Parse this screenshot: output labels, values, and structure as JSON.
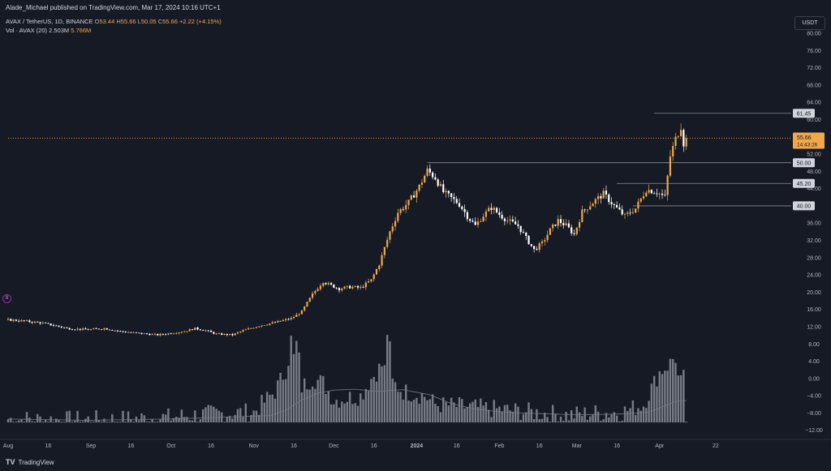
{
  "header": {
    "publisher": "Alade_Michael published on TradingView.com, Mar 17, 2024 10:16 UTC+1"
  },
  "symbol_line": {
    "symbol": "AVAX / TetherUS, 1D, BINANCE",
    "o_label": "O",
    "o_value": "53.44",
    "h_label": "H",
    "h_value": "55.66",
    "l_label": "L",
    "l_value": "50.05",
    "c_label": "C",
    "c_value": "55.66",
    "change": "+2.22 (+4.15%)"
  },
  "volume_line": {
    "label": "Vol · AVAX (20)",
    "value1": "2.503M",
    "value2": "5.766M"
  },
  "currency_button": "USDT",
  "footer": {
    "logo": "TV",
    "brand": "TradingView"
  },
  "alert_badge": "8",
  "colors": {
    "background": "#161a25",
    "up_candle": "#f0a84b",
    "down_candle": "#ffffff",
    "volume_bar": "#9598a1",
    "ma_line": "#787b86",
    "price_line": "#f0a84b",
    "level_line": "#8a8d96",
    "axis_text": "#b2b5be"
  },
  "chart_data": {
    "type": "candlestick",
    "y_axis_ticks": [
      "80.00",
      "76.00",
      "72.00",
      "68.00",
      "64.00",
      "60.00",
      "52.00",
      "48.00",
      "44.00",
      "36.00",
      "32.00",
      "28.00",
      "24.00",
      "20.00",
      "16.00",
      "12.00",
      "8.00",
      "4.00",
      "0.00",
      "−4.00",
      "−8.00",
      "−12.00"
    ],
    "y_axis_tick_values": [
      80,
      76,
      72,
      68,
      64,
      60,
      52,
      48,
      44,
      36,
      32,
      28,
      24,
      20,
      16,
      12,
      8,
      4,
      0,
      -4,
      -8,
      -12
    ],
    "x_axis_labels": [
      "Aug",
      "16",
      "Sep",
      "16",
      "Oct",
      "16",
      "Nov",
      "16",
      "Dec",
      "16",
      "2024",
      "16",
      "Feb",
      "16",
      "Mar",
      "16",
      "Apr",
      "22"
    ],
    "x_axis_label_days": [
      0,
      15,
      31,
      46,
      61,
      76,
      92,
      107,
      122,
      137,
      153,
      168,
      184,
      199,
      213,
      228,
      244,
      265
    ],
    "ylim": [
      -12,
      82
    ],
    "horizontal_levels": [
      {
        "value": 61.45,
        "label": "61.45",
        "start_day": 242
      },
      {
        "value": 50.0,
        "label": "50.00",
        "start_day": 157
      },
      {
        "value": 45.2,
        "label": "45.20",
        "start_day": 228
      },
      {
        "value": 40.0,
        "label": "40.00",
        "start_day": 234
      }
    ],
    "current_price": {
      "value": 55.66,
      "label": "55.66",
      "countdown": "14:43:26"
    },
    "price_anchors": [
      [
        0,
        13.6
      ],
      [
        6,
        13.3
      ],
      [
        12,
        12.9
      ],
      [
        18,
        12.2
      ],
      [
        22,
        11.6
      ],
      [
        30,
        11.3
      ],
      [
        36,
        11.6
      ],
      [
        42,
        10.9
      ],
      [
        50,
        10.4
      ],
      [
        56,
        10.1
      ],
      [
        60,
        10.4
      ],
      [
        66,
        10.9
      ],
      [
        70,
        11.6
      ],
      [
        74,
        11.1
      ],
      [
        78,
        10.3
      ],
      [
        84,
        10.1
      ],
      [
        88,
        11.1
      ],
      [
        94,
        12.2
      ],
      [
        100,
        13.0
      ],
      [
        106,
        13.9
      ],
      [
        110,
        15.5
      ],
      [
        114,
        19.5
      ],
      [
        118,
        22.5
      ],
      [
        120,
        21.8
      ],
      [
        124,
        20.8
      ],
      [
        128,
        21.2
      ],
      [
        132,
        21.0
      ],
      [
        136,
        22.8
      ],
      [
        139,
        26.5
      ],
      [
        143,
        34.0
      ],
      [
        146,
        38.5
      ],
      [
        150,
        40.8
      ],
      [
        154,
        44.5
      ],
      [
        157,
        48.2
      ],
      [
        160,
        46.5
      ],
      [
        163,
        43.2
      ],
      [
        166,
        41.8
      ],
      [
        169,
        40.4
      ],
      [
        172,
        37.6
      ],
      [
        175,
        35.4
      ],
      [
        178,
        37.8
      ],
      [
        181,
        39.6
      ],
      [
        184,
        38.0
      ],
      [
        187,
        36.6
      ],
      [
        191,
        35.4
      ],
      [
        194,
        32.5
      ],
      [
        197,
        29.8
      ],
      [
        200,
        31.3
      ],
      [
        203,
        34.4
      ],
      [
        206,
        36.6
      ],
      [
        209,
        35.4
      ],
      [
        212,
        33.4
      ],
      [
        215,
        38.6
      ],
      [
        219,
        40.8
      ],
      [
        223,
        42.8
      ],
      [
        227,
        40.0
      ],
      [
        231,
        37.6
      ],
      [
        235,
        39.4
      ],
      [
        239,
        43.8
      ],
      [
        243,
        43.2
      ],
      [
        246,
        42.0
      ],
      [
        248,
        51.5
      ],
      [
        250,
        55.5
      ],
      [
        252,
        58.5
      ],
      [
        253,
        54.5
      ],
      [
        254,
        55.66
      ]
    ],
    "volume_anchors": [
      [
        0,
        -9.4
      ],
      [
        20,
        -9.6
      ],
      [
        40,
        -9.5
      ],
      [
        60,
        -9.0
      ],
      [
        76,
        -8.2
      ],
      [
        92,
        -7.8
      ],
      [
        100,
        -3.0
      ],
      [
        104,
        2.0
      ],
      [
        106,
        7.0
      ],
      [
        110,
        -2.0
      ],
      [
        114,
        0.0
      ],
      [
        118,
        -1.0
      ],
      [
        122,
        -5.0
      ],
      [
        132,
        -4.0
      ],
      [
        136,
        0.0
      ],
      [
        140,
        3.0
      ],
      [
        144,
        -1.0
      ],
      [
        148,
        -3.0
      ],
      [
        152,
        -3.5
      ],
      [
        156,
        -4.0
      ],
      [
        160,
        -6.0
      ],
      [
        170,
        -6.5
      ],
      [
        180,
        -7.0
      ],
      [
        190,
        -7.5
      ],
      [
        200,
        -8.0
      ],
      [
        210,
        -8.5
      ],
      [
        220,
        -8.0
      ],
      [
        230,
        -7.8
      ],
      [
        238,
        -6.0
      ],
      [
        244,
        1.5
      ],
      [
        248,
        3.5
      ],
      [
        252,
        -1.0
      ],
      [
        254,
        -9.5
      ]
    ],
    "volume_peaks": [
      [
        106,
        9.9
      ],
      [
        108,
        8.7
      ],
      [
        109,
        6.0
      ],
      [
        142,
        10.1
      ],
      [
        143,
        8.6
      ],
      [
        249,
        4.5
      ],
      [
        250,
        3.6
      ],
      [
        253,
        2.0
      ]
    ],
    "ma_anchors": [
      [
        0,
        -9.4
      ],
      [
        30,
        -9.7
      ],
      [
        60,
        -9.4
      ],
      [
        80,
        -9.0
      ],
      [
        98,
        -8.6
      ],
      [
        104,
        -7.4
      ],
      [
        110,
        -5.0
      ],
      [
        116,
        -3.4
      ],
      [
        122,
        -2.7
      ],
      [
        130,
        -2.5
      ],
      [
        138,
        -3.0
      ],
      [
        148,
        -2.6
      ],
      [
        158,
        -3.8
      ],
      [
        166,
        -5.8
      ],
      [
        174,
        -7.0
      ],
      [
        182,
        -7.6
      ],
      [
        192,
        -8.0
      ],
      [
        202,
        -8.2
      ],
      [
        212,
        -8.4
      ],
      [
        224,
        -8.3
      ],
      [
        232,
        -8.2
      ],
      [
        240,
        -7.8
      ],
      [
        246,
        -6.4
      ],
      [
        250,
        -5.3
      ],
      [
        254,
        -5.1
      ]
    ]
  }
}
